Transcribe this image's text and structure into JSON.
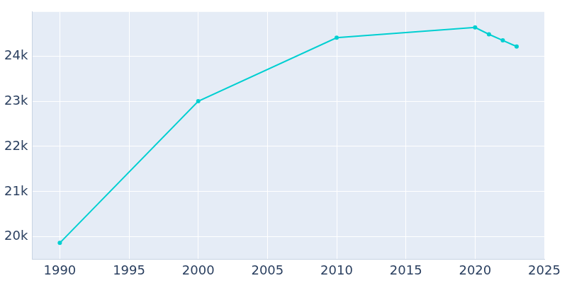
{
  "chart_data": {
    "type": "line",
    "x": [
      1990,
      2000,
      2010,
      2020,
      2021,
      2022,
      2023
    ],
    "values": [
      19865,
      23000,
      24406,
      24632,
      24481,
      24346,
      24211
    ],
    "color": "#00cfd1",
    "marker": "circle",
    "xlim": [
      1988,
      2025
    ],
    "xticks": [
      1990,
      1995,
      2000,
      2005,
      2010,
      2015,
      2020,
      2025
    ],
    "ylim": [
      19504,
      24977
    ],
    "yticks": [
      {
        "value": 20000,
        "label": "20k"
      },
      {
        "value": 21000,
        "label": "21k"
      },
      {
        "value": 22000,
        "label": "22k"
      },
      {
        "value": 23000,
        "label": "23k"
      },
      {
        "value": 24000,
        "label": "24k"
      }
    ],
    "grid": true
  }
}
